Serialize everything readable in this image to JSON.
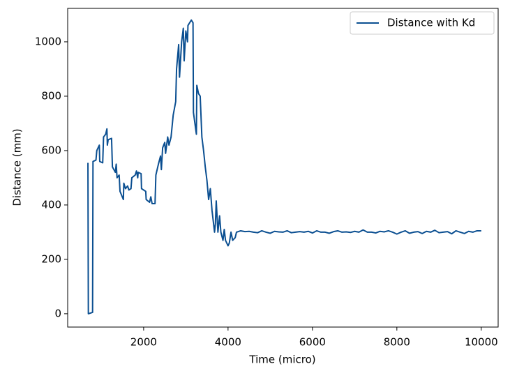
{
  "chart_data": {
    "type": "line",
    "xlabel": "Time (micro)",
    "ylabel": "Distance (mm)",
    "x": [
      680,
      690,
      790,
      800,
      870,
      890,
      950,
      960,
      1030,
      1050,
      1100,
      1130,
      1140,
      1160,
      1240,
      1260,
      1330,
      1350,
      1370,
      1420,
      1440,
      1520,
      1530,
      1570,
      1620,
      1650,
      1700,
      1720,
      1800,
      1830,
      1860,
      1870,
      1940,
      1950,
      2050,
      2060,
      2140,
      2170,
      2200,
      2270,
      2290,
      2350,
      2400,
      2420,
      2450,
      2500,
      2520,
      2570,
      2600,
      2650,
      2700,
      2760,
      2780,
      2830,
      2850,
      2900,
      2940,
      2960,
      3000,
      3040,
      3050,
      3130,
      3170,
      3180,
      3250,
      3260,
      3300,
      3340,
      3380,
      3420,
      3460,
      3500,
      3540,
      3580,
      3620,
      3680,
      3700,
      3720,
      3760,
      3800,
      3830,
      3880,
      3910,
      3940,
      4000,
      4030,
      4070,
      4110,
      4170,
      4200,
      4300,
      4400,
      4500,
      4600,
      4700,
      4800,
      4900,
      5000,
      5100,
      5200,
      5300,
      5400,
      5500,
      5600,
      5700,
      5800,
      5900,
      6000,
      6100,
      6200,
      6300,
      6400,
      6500,
      6600,
      6700,
      6800,
      6900,
      7000,
      7100,
      7200,
      7300,
      7400,
      7500,
      7600,
      7700,
      7800,
      7900,
      8000,
      8100,
      8200,
      8300,
      8400,
      8500,
      8600,
      8700,
      8800,
      8900,
      9000,
      9100,
      9200,
      9300,
      9400,
      9500,
      9600,
      9700,
      9800,
      9900,
      10000
    ],
    "series": [
      {
        "name": "Distance with Kd",
        "color": "#0b4f91",
        "values": [
          555,
          0,
          5,
          560,
          565,
          600,
          620,
          560,
          555,
          650,
          660,
          680,
          620,
          640,
          645,
          540,
          520,
          550,
          500,
          510,
          450,
          420,
          480,
          460,
          470,
          455,
          460,
          500,
          510,
          525,
          500,
          520,
          515,
          460,
          450,
          420,
          410,
          430,
          405,
          405,
          510,
          550,
          580,
          530,
          610,
          630,
          590,
          650,
          620,
          650,
          730,
          780,
          900,
          990,
          870,
          1000,
          1050,
          930,
          1040,
          1000,
          1060,
          1080,
          1070,
          740,
          660,
          840,
          810,
          800,
          650,
          600,
          540,
          490,
          420,
          460,
          380,
          300,
          330,
          415,
          300,
          360,
          300,
          270,
          310,
          270,
          250,
          260,
          300,
          270,
          280,
          300,
          305,
          302,
          303,
          300,
          298,
          305,
          300,
          296,
          303,
          301,
          300,
          305,
          298,
          300,
          302,
          300,
          303,
          297,
          305,
          300,
          300,
          296,
          302,
          305,
          300,
          301,
          299,
          303,
          300,
          308,
          300,
          300,
          297,
          303,
          301,
          305,
          300,
          293,
          300,
          305,
          296,
          300,
          302,
          295,
          303,
          300,
          307,
          298,
          300,
          302,
          294,
          305,
          300,
          295,
          303,
          300,
          305,
          305
        ]
      }
    ],
    "xlim": [
      200,
      10400
    ],
    "ylim": [
      -49,
      1123
    ],
    "xticks": [
      2000,
      4000,
      6000,
      8000,
      10000
    ],
    "yticks": [
      0,
      200,
      400,
      600,
      800,
      1000
    ],
    "legend": "upper right",
    "grid": false
  }
}
